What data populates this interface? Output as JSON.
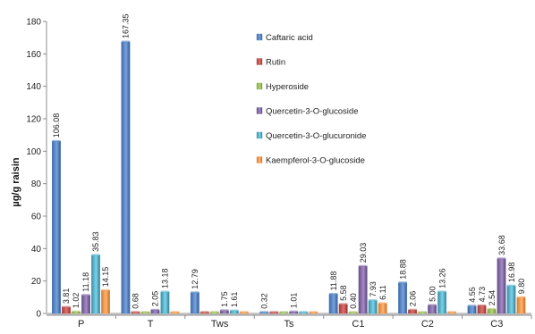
{
  "chart_data": {
    "type": "bar",
    "title": "",
    "xlabel": "",
    "ylabel": "µg/g raisin",
    "ylim": [
      0,
      180
    ],
    "yticks": [
      0,
      20,
      40,
      60,
      80,
      100,
      120,
      140,
      160,
      180
    ],
    "grid": false,
    "legend_position": "top-right",
    "categories": [
      "P",
      "T",
      "Tws",
      "Ts",
      "C1",
      "C2",
      "C3"
    ],
    "series": [
      {
        "name": "Caftaric acid",
        "color": "#4f81bd",
        "values": [
          106.08,
          167.35,
          12.79,
          0.32,
          11.88,
          18.88,
          4.55
        ]
      },
      {
        "name": "Rutin",
        "color": "#c0504d",
        "values": [
          3.81,
          0.68,
          0.2,
          0.1,
          5.58,
          2.06,
          4.73
        ]
      },
      {
        "name": "Hyperoside",
        "color": "#9bbb59",
        "values": [
          1.02,
          0.2,
          0.2,
          0.1,
          0.4,
          0.3,
          2.54
        ]
      },
      {
        "name": "Quercetin-3-O-glucoside",
        "color": "#8064a2",
        "values": [
          11.18,
          2.05,
          1.75,
          1.01,
          29.03,
          5.0,
          33.68
        ]
      },
      {
        "name": "Quercetin-3-O-glucuronide",
        "color": "#4bacc6",
        "values": [
          35.83,
          13.18,
          1.61,
          0.3,
          7.93,
          13.26,
          16.98
        ]
      },
      {
        "name": "Kaempferol-3-O-glucoside",
        "color": "#f79646",
        "values": [
          14.15,
          0.3,
          0.3,
          0.1,
          6.11,
          0.3,
          9.8
        ]
      }
    ],
    "data_labels": [
      [
        "106.08",
        "3.81",
        "1.02",
        "11.18",
        "35.83",
        "14.15"
      ],
      [
        "167.35",
        "0.68",
        "",
        "2.05",
        "13.18",
        ""
      ],
      [
        "12.79",
        "",
        "",
        "1.75",
        "1.61",
        ""
      ],
      [
        "0.32",
        "",
        "",
        "1.01",
        "",
        ""
      ],
      [
        "11.88",
        "5.58",
        "0.40",
        "29.03",
        "7.93",
        "6.11"
      ],
      [
        "18.88",
        "2.06",
        "",
        "5.00",
        "13.26",
        ""
      ],
      [
        "4.55",
        "4.73",
        "2.54",
        "33.68",
        "16.98",
        "9.80"
      ]
    ]
  }
}
